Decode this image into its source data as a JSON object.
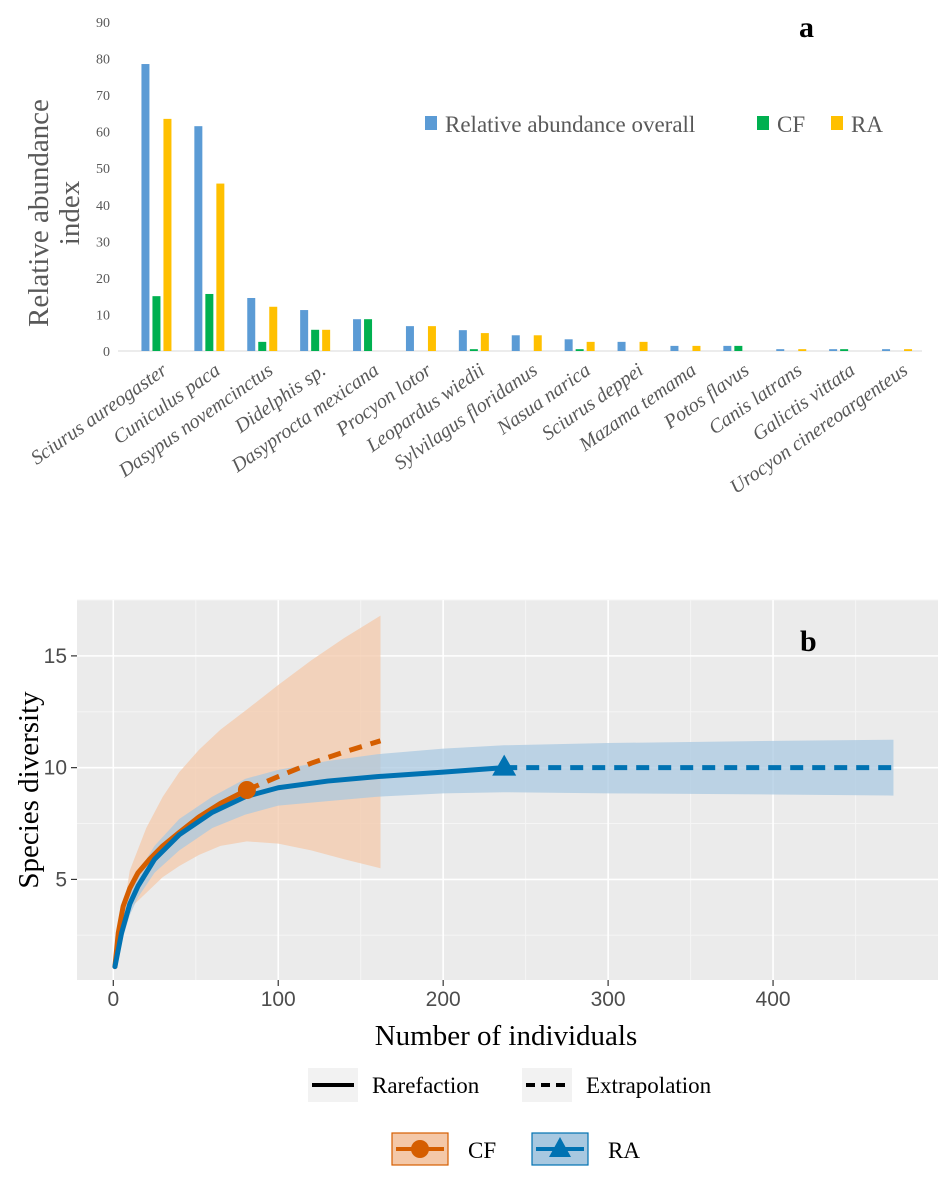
{
  "chart_data": [
    {
      "type": "bar",
      "panel_label": "a",
      "ylabel": "Relative abundance index",
      "ylim": [
        0,
        90
      ],
      "yticks": [
        0,
        10,
        20,
        30,
        40,
        50,
        60,
        70,
        80,
        90
      ],
      "grid": false,
      "legend_position": "top-right",
      "categories": [
        "Sciurus aureogaster",
        "Cuniculus paca",
        "Dasypus novemcinctus",
        "Didelphis sp.",
        "Dasyprocta mexicana",
        "Procyon lotor",
        "Leopardus wiedii",
        "Sylvilagus floridanus",
        "Nasua narica",
        "Sciurus deppei",
        "Mazama temama",
        "Potos flavus",
        "Canis latrans",
        "Galictis vittata",
        "Urocyon cinereoargenteus"
      ],
      "series": [
        {
          "name": "Relative abundance overall",
          "color": "#5b9bd5",
          "values": [
            78.5,
            61.5,
            14.5,
            11.2,
            8.7,
            6.8,
            5.7,
            4.3,
            3.2,
            2.5,
            1.4,
            1.4,
            0.5,
            0.5,
            0.5
          ]
        },
        {
          "name": "CF",
          "color": "#00b050",
          "values": [
            15.0,
            15.6,
            2.5,
            5.8,
            8.7,
            0,
            0.5,
            0,
            0.5,
            0,
            0,
            1.4,
            0,
            0.5,
            0
          ]
        },
        {
          "name": "RA",
          "color": "#ffc000",
          "values": [
            63.5,
            45.8,
            12.1,
            5.8,
            0,
            6.8,
            4.9,
            4.3,
            2.5,
            2.5,
            1.4,
            0,
            0.5,
            0,
            0.5
          ]
        }
      ]
    },
    {
      "type": "line",
      "panel_label": "b",
      "xlabel": "Number of individuals",
      "ylabel": "Species diversity",
      "xlim": [
        -22,
        500
      ],
      "ylim": [
        0.5,
        17.5
      ],
      "xticks": [
        0,
        100,
        200,
        300,
        400
      ],
      "yticks": [
        5,
        10,
        15
      ],
      "grid": true,
      "legend_position": "bottom",
      "line_legend": [
        "Rarefaction",
        "Extrapolation"
      ],
      "series": [
        {
          "name": "CF",
          "color": "#d55e00",
          "marker": "circle",
          "band_color": "#f4c8a8",
          "observed": {
            "x": 81,
            "y": 9.0
          },
          "rarefaction": {
            "x": [
              1,
              3,
              6,
              10,
              15,
              22,
              30,
              40,
              52,
              65,
              81
            ],
            "y": [
              1.1,
              2.6,
              3.8,
              4.6,
              5.3,
              5.9,
              6.5,
              7.1,
              7.8,
              8.4,
              9.0
            ]
          },
          "extrapolation": {
            "x": [
              81,
              100,
              120,
              140,
              162
            ],
            "y": [
              9.0,
              9.6,
              10.2,
              10.7,
              11.2
            ]
          },
          "band": {
            "x": [
              1,
              10,
              20,
              30,
              40,
              52,
              65,
              81,
              100,
              120,
              140,
              162
            ],
            "upper": [
              1.2,
              5.4,
              7.3,
              8.7,
              9.8,
              10.8,
              11.7,
              12.6,
              13.7,
              14.8,
              15.8,
              16.8
            ],
            "lower": [
              1.0,
              3.7,
              4.4,
              5.1,
              5.6,
              6.1,
              6.5,
              6.7,
              6.6,
              6.3,
              5.9,
              5.5
            ]
          }
        },
        {
          "name": "RA",
          "color": "#0072b2",
          "marker": "triangle",
          "band_color": "#a8c8e0",
          "observed": {
            "x": 237,
            "y": 10.0
          },
          "rarefaction": {
            "x": [
              1,
              5,
              10,
              15,
              25,
              40,
              60,
              80,
              100,
              130,
              160,
              200,
              237
            ],
            "y": [
              1.1,
              2.6,
              3.9,
              4.7,
              5.9,
              7.0,
              8.0,
              8.7,
              9.1,
              9.4,
              9.6,
              9.8,
              10.0
            ]
          },
          "extrapolation": {
            "x": [
              237,
              300,
              350,
              400,
              473
            ],
            "y": [
              10.0,
              10.0,
              10.0,
              10.0,
              10.0
            ]
          },
          "band": {
            "x": [
              1,
              5,
              10,
              15,
              25,
              40,
              60,
              80,
              100,
              130,
              160,
              200,
              237,
              300,
              400,
              473
            ],
            "upper": [
              1.2,
              3.0,
              4.4,
              5.3,
              6.5,
              7.7,
              8.7,
              9.5,
              9.9,
              10.3,
              10.6,
              10.85,
              11.0,
              11.1,
              11.2,
              11.25
            ],
            "lower": [
              1.0,
              2.2,
              3.4,
              4.2,
              5.3,
              6.3,
              7.3,
              7.9,
              8.3,
              8.5,
              8.7,
              8.85,
              8.9,
              8.85,
              8.8,
              8.75
            ]
          }
        }
      ]
    }
  ]
}
